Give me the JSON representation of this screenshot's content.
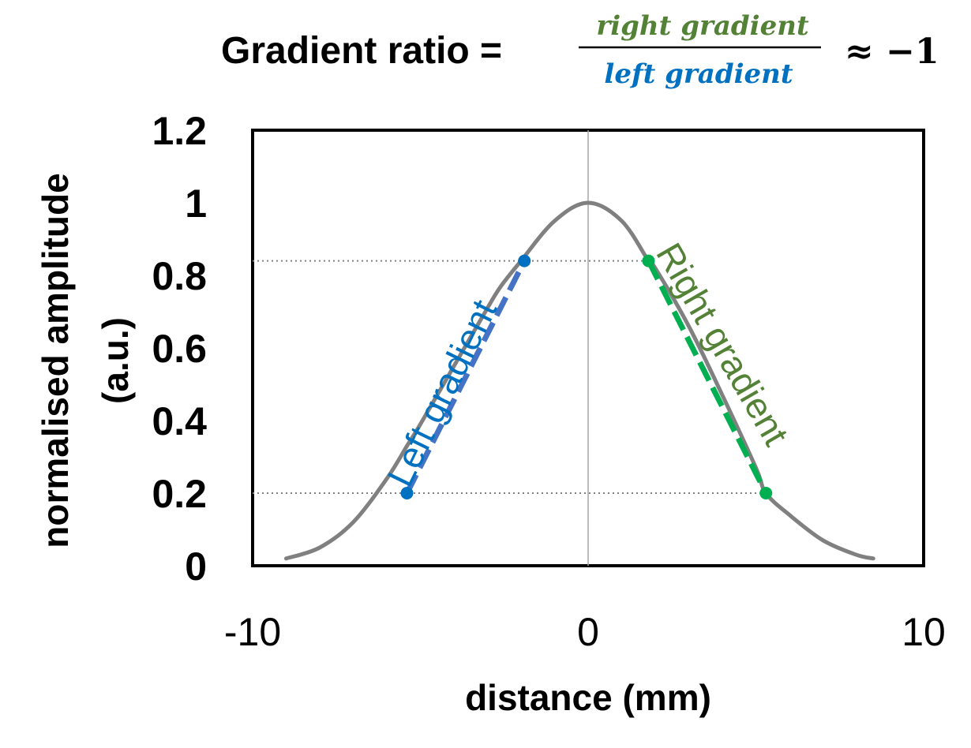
{
  "title": {
    "prefix": "Gradient ratio =",
    "numerator": "right gradient",
    "denominator": "left gradient",
    "approx": "≈ −1",
    "colors": {
      "numerator": "#538135",
      "denominator": "#0070C0"
    }
  },
  "chart_data": {
    "type": "line",
    "xlabel": "distance (mm)",
    "ylabel_line1": "normalised amplitude",
    "ylabel_line2": "(a.u.)",
    "xlim": [
      -10,
      10
    ],
    "ylim": [
      0,
      1.2
    ],
    "x_ticks": [
      "-10",
      "0",
      "10"
    ],
    "y_ticks": [
      "0",
      "0.2",
      "0.4",
      "0.6",
      "0.8",
      "1",
      "1.2"
    ],
    "grid": false,
    "legend": "none",
    "curve": {
      "x": [
        -9,
        -8,
        -7,
        -6,
        -5.4,
        -5,
        -4,
        -3,
        -2.6,
        -2,
        -1,
        0,
        1,
        1.8,
        2,
        3,
        4,
        5,
        5.3,
        6,
        7,
        8,
        8.5
      ],
      "y": [
        0.02,
        0.05,
        0.12,
        0.24,
        0.33,
        0.39,
        0.55,
        0.71,
        0.77,
        0.84,
        0.95,
        1.0,
        0.95,
        0.84,
        0.82,
        0.66,
        0.47,
        0.27,
        0.2,
        0.14,
        0.07,
        0.03,
        0.02
      ],
      "color": "#808080"
    },
    "left_gradient": {
      "label": "Left gradient",
      "color": "#0070C0",
      "points": [
        {
          "x": -5.4,
          "y": 0.2
        },
        {
          "x": -1.9,
          "y": 0.84
        }
      ]
    },
    "right_gradient": {
      "label": "Right gradient",
      "color": "#00B050",
      "label_color": "#538135",
      "points": [
        {
          "x": 1.8,
          "y": 0.84
        },
        {
          "x": 5.3,
          "y": 0.2
        }
      ]
    },
    "reference_lines_y": [
      0.84,
      0.2
    ],
    "reference_line_x": 0
  }
}
